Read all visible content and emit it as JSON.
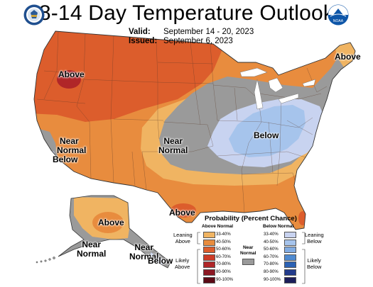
{
  "header": {
    "title": "8-14 Day Temperature Outlook",
    "valid_label": "Valid:",
    "valid_value": "September 14 - 20, 2023",
    "issued_label": "Issued:",
    "issued_value": "September 6, 2023"
  },
  "logos": {
    "left": "doc-seal-icon",
    "right": "noaa-logo-icon",
    "noaa_text": "NOAA"
  },
  "map_labels": {
    "above_northwest": "Above",
    "above_northeast": "Above",
    "near_normal_central": [
      "Near",
      "Normal"
    ],
    "near_normal_below_ca": [
      "Near",
      "Normal",
      "Below"
    ],
    "below_east": "Below",
    "above_texas": "Above",
    "above_alaska": "Above",
    "near_normal_alaska_sw": [
      "Near",
      "Normal"
    ],
    "near_normal_alaska_se": [
      "Near",
      "Normal"
    ],
    "below_alaska_se": "Below"
  },
  "legend": {
    "title": "Probability (Percent Chance)",
    "above_header": "Above Normal",
    "below_header": "Below Normal",
    "near_header": [
      "Near",
      "Normal"
    ],
    "above_rows": [
      {
        "label": "33-40%",
        "color": "#f0b462"
      },
      {
        "label": "40-50%",
        "color": "#e88c3e"
      },
      {
        "label": "50-60%",
        "color": "#dc5d2c"
      },
      {
        "label": "60-70%",
        "color": "#cd3b26"
      },
      {
        "label": "70-80%",
        "color": "#b02628"
      },
      {
        "label": "80-90%",
        "color": "#8c1823"
      },
      {
        "label": "90-100%",
        "color": "#5c0a15"
      }
    ],
    "below_rows": [
      {
        "label": "33-40%",
        "color": "#c8d3f0"
      },
      {
        "label": "40-50%",
        "color": "#a6c4ec"
      },
      {
        "label": "50-60%",
        "color": "#82ace2"
      },
      {
        "label": "60-70%",
        "color": "#4f8ad0"
      },
      {
        "label": "70-80%",
        "color": "#2c62b4"
      },
      {
        "label": "80-90%",
        "color": "#233c8c"
      },
      {
        "label": "90-100%",
        "color": "#1c1e5a"
      }
    ],
    "near_color": "#9a9a9a",
    "left_categories": [
      [
        "Leaning",
        "Above"
      ],
      [
        "Likely",
        "Above"
      ]
    ],
    "right_categories": [
      [
        "Leaning",
        "Below"
      ],
      [
        "Likely",
        "Below"
      ]
    ]
  }
}
